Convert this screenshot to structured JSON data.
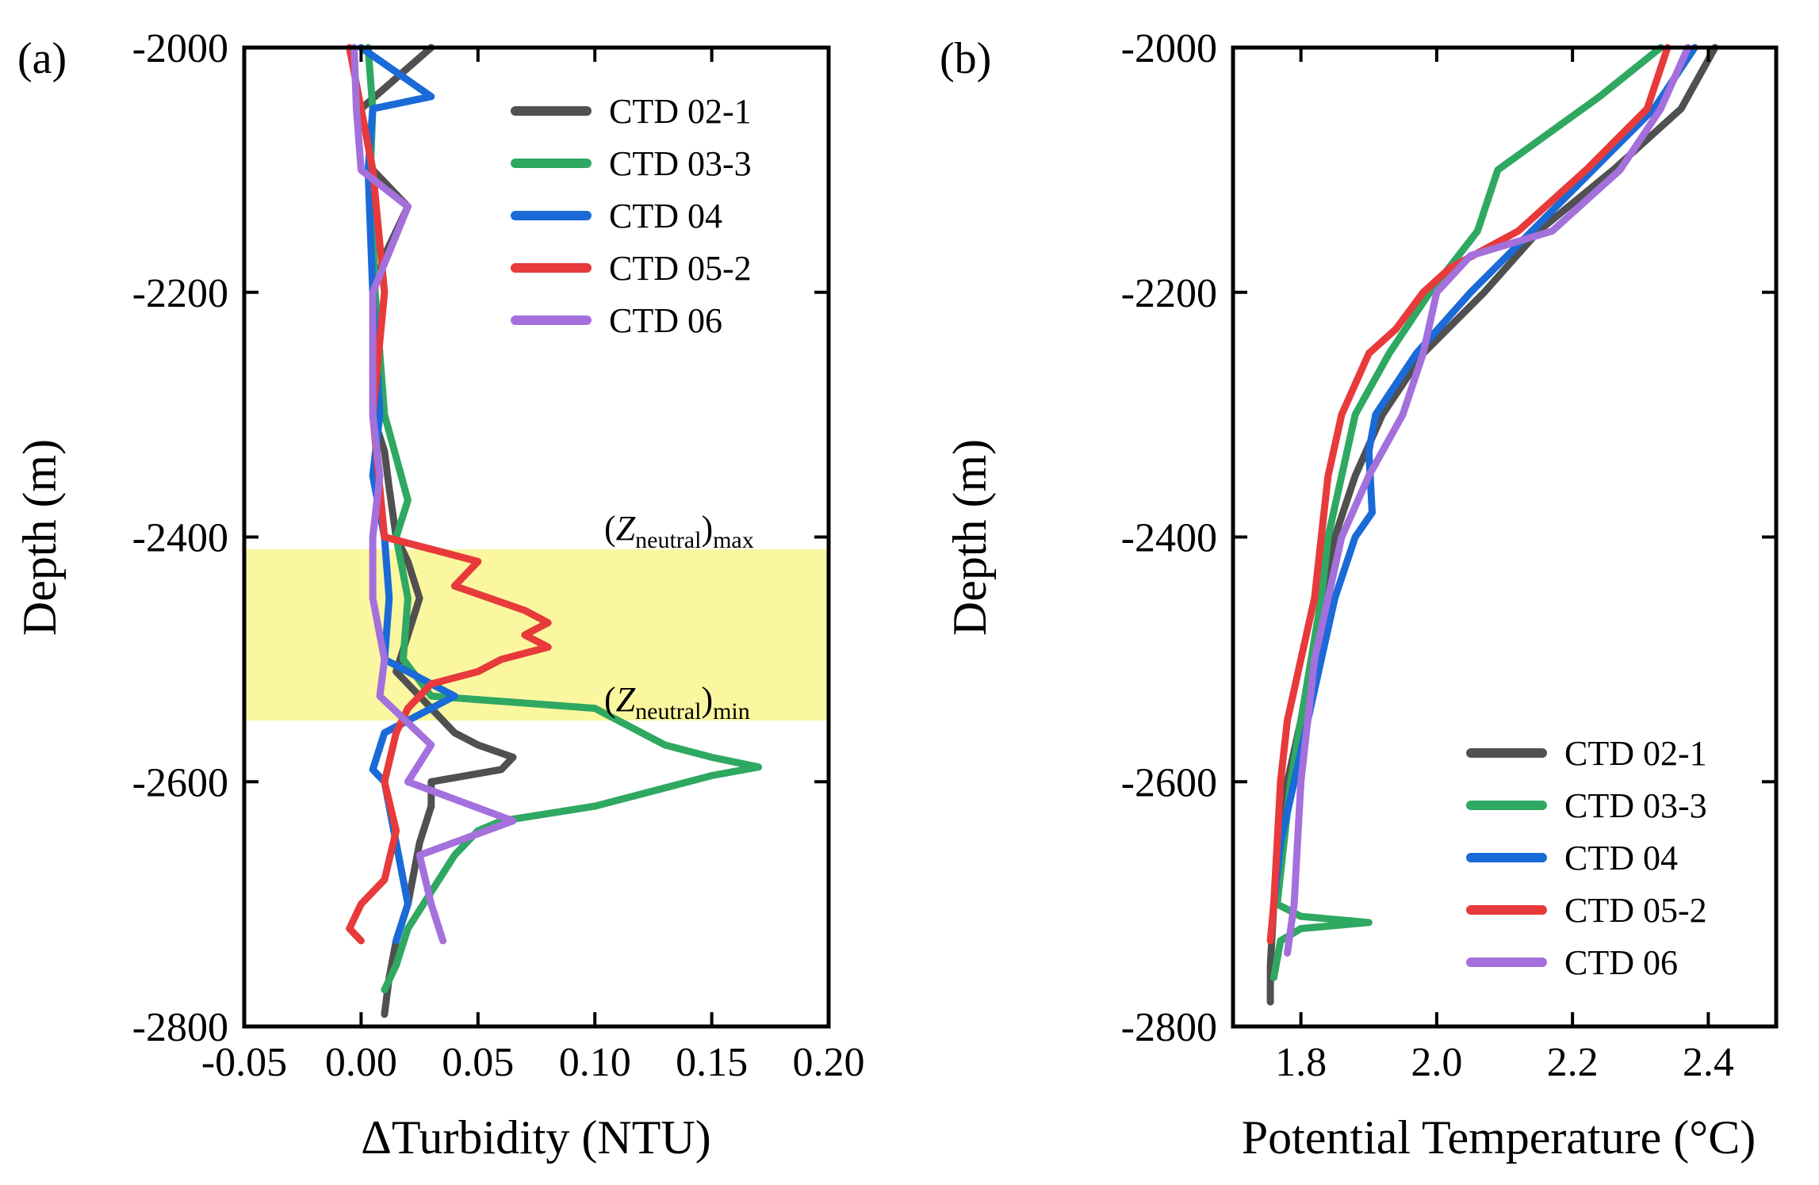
{
  "chart_data": [
    {
      "panel": "a",
      "panel_label": "(a)",
      "type": "line",
      "xlabel": "ΔTurbidity (NTU)",
      "ylabel": "Depth (m)",
      "xlim": [
        -0.05,
        0.2
      ],
      "ylim": [
        -2800,
        -2000
      ],
      "xticks": [
        -0.05,
        0.0,
        0.05,
        0.1,
        0.15,
        0.2
      ],
      "xtick_labels": [
        "-0.05",
        "0.00",
        "0.05",
        "0.10",
        "0.15",
        "0.20"
      ],
      "yticks": [
        -2000,
        -2200,
        -2400,
        -2600,
        -2800
      ],
      "ytick_labels": [
        "-2000",
        "-2200",
        "-2400",
        "-2600",
        "-2800"
      ],
      "legend_position": "top-right",
      "shaded_band": {
        "y_from": -2410,
        "y_to": -2550,
        "color": "#fbf7a0"
      },
      "annotations": [
        {
          "base": "(Z",
          "sub": "neutral",
          "close": ")",
          "sub2": "max",
          "y": -2410
        },
        {
          "base": "(Z",
          "sub": "neutral",
          "close": ")",
          "sub2": "min",
          "y": -2550
        }
      ],
      "series": [
        {
          "name": "CTD 02-1",
          "color": "#505050",
          "depth": [
            -2000,
            -2050,
            -2100,
            -2130,
            -2170,
            -2200,
            -2250,
            -2300,
            -2330,
            -2360,
            -2400,
            -2420,
            -2450,
            -2480,
            -2510,
            -2540,
            -2560,
            -2570,
            -2580,
            -2590,
            -2600,
            -2620,
            -2650,
            -2700,
            -2730,
            -2760,
            -2790
          ],
          "value": [
            0.03,
            0.0,
            0.005,
            0.02,
            0.01,
            0.005,
            0.008,
            0.005,
            0.01,
            0.012,
            0.015,
            0.02,
            0.025,
            0.02,
            0.015,
            0.03,
            0.04,
            0.05,
            0.065,
            0.06,
            0.03,
            0.03,
            0.025,
            0.02,
            0.015,
            0.012,
            0.01
          ]
        },
        {
          "name": "CTD 03-3",
          "color": "#2fa862",
          "depth": [
            -2000,
            -2050,
            -2100,
            -2200,
            -2300,
            -2370,
            -2400,
            -2450,
            -2500,
            -2530,
            -2540,
            -2560,
            -2570,
            -2580,
            -2588,
            -2595,
            -2605,
            -2620,
            -2632,
            -2640,
            -2660,
            -2690,
            -2720,
            -2750,
            -2770
          ],
          "value": [
            0.003,
            0.005,
            0.004,
            0.006,
            0.01,
            0.02,
            0.015,
            0.02,
            0.018,
            0.03,
            0.1,
            0.12,
            0.13,
            0.15,
            0.17,
            0.15,
            0.13,
            0.1,
            0.06,
            0.05,
            0.04,
            0.03,
            0.02,
            0.015,
            0.01
          ]
        },
        {
          "name": "CTD 04",
          "color": "#1a6ad8",
          "depth": [
            -2000,
            -2040,
            -2050,
            -2100,
            -2200,
            -2300,
            -2350,
            -2400,
            -2450,
            -2500,
            -2530,
            -2560,
            -2590,
            -2600,
            -2650,
            -2700,
            -2730
          ],
          "value": [
            0.0,
            0.03,
            0.005,
            0.003,
            0.005,
            0.008,
            0.005,
            0.01,
            0.012,
            0.01,
            0.04,
            0.01,
            0.005,
            0.01,
            0.015,
            0.02,
            0.015
          ]
        },
        {
          "name": "CTD 05-2",
          "color": "#e83a3a",
          "depth": [
            -2000,
            -2100,
            -2200,
            -2300,
            -2400,
            -2410,
            -2420,
            -2440,
            -2460,
            -2470,
            -2480,
            -2490,
            -2500,
            -2510,
            -2520,
            -2540,
            -2560,
            -2600,
            -2640,
            -2680,
            -2700,
            -2720,
            -2730
          ],
          "value": [
            -0.005,
            0.005,
            0.01,
            0.005,
            0.01,
            0.03,
            0.05,
            0.04,
            0.07,
            0.08,
            0.07,
            0.08,
            0.06,
            0.05,
            0.03,
            0.02,
            0.015,
            0.01,
            0.015,
            0.01,
            0.0,
            -0.005,
            0.0
          ]
        },
        {
          "name": "CTD 06",
          "color": "#a470dc",
          "depth": [
            -2000,
            -2050,
            -2100,
            -2130,
            -2200,
            -2300,
            -2350,
            -2400,
            -2450,
            -2500,
            -2530,
            -2570,
            -2600,
            -2632,
            -2660,
            -2700,
            -2730
          ],
          "value": [
            -0.003,
            -0.002,
            0.0,
            0.02,
            0.005,
            0.005,
            0.008,
            0.005,
            0.005,
            0.01,
            0.008,
            0.03,
            0.02,
            0.065,
            0.025,
            0.03,
            0.035
          ]
        }
      ]
    },
    {
      "panel": "b",
      "panel_label": "(b)",
      "type": "line",
      "xlabel": "Potential Temperature (°C)",
      "ylabel": "Depth (m)",
      "xlim": [
        1.7,
        2.5
      ],
      "ylim": [
        -2800,
        -2000
      ],
      "xticks": [
        1.8,
        2.0,
        2.2,
        2.4
      ],
      "xtick_labels": [
        "1.8",
        "2.0",
        "2.2",
        "2.4"
      ],
      "yticks": [
        -2000,
        -2200,
        -2400,
        -2600,
        -2800
      ],
      "ytick_labels": [
        "-2000",
        "-2200",
        "-2400",
        "-2600",
        "-2800"
      ],
      "legend_position": "bottom-right",
      "series": [
        {
          "name": "CTD 02-1",
          "color": "#505050",
          "depth": [
            -2000,
            -2050,
            -2100,
            -2150,
            -2200,
            -2250,
            -2300,
            -2350,
            -2400,
            -2450,
            -2500,
            -2550,
            -2600,
            -2650,
            -2700,
            -2750,
            -2780
          ],
          "value": [
            2.41,
            2.36,
            2.26,
            2.15,
            2.07,
            1.98,
            1.92,
            1.88,
            1.85,
            1.83,
            1.82,
            1.8,
            1.78,
            1.77,
            1.76,
            1.755,
            1.755
          ]
        },
        {
          "name": "CTD 03-3",
          "color": "#2fa862",
          "depth": [
            -2000,
            -2040,
            -2080,
            -2100,
            -2150,
            -2200,
            -2250,
            -2300,
            -2400,
            -2450,
            -2500,
            -2550,
            -2600,
            -2650,
            -2700,
            -2710,
            -2715,
            -2720,
            -2730,
            -2760
          ],
          "value": [
            2.33,
            2.24,
            2.14,
            2.09,
            2.06,
            1.99,
            1.93,
            1.88,
            1.84,
            1.83,
            1.815,
            1.8,
            1.785,
            1.775,
            1.765,
            1.8,
            1.9,
            1.8,
            1.77,
            1.76
          ]
        },
        {
          "name": "CTD 04",
          "color": "#1a6ad8",
          "depth": [
            -2000,
            -2050,
            -2100,
            -2150,
            -2200,
            -2250,
            -2300,
            -2330,
            -2380,
            -2400,
            -2450,
            -2500,
            -2550,
            -2600,
            -2650,
            -2700
          ],
          "value": [
            2.38,
            2.32,
            2.23,
            2.14,
            2.05,
            1.97,
            1.91,
            1.9,
            1.905,
            1.88,
            1.85,
            1.83,
            1.81,
            1.79,
            1.77,
            1.76
          ]
        },
        {
          "name": "CTD 05-2",
          "color": "#e83a3a",
          "depth": [
            -2000,
            -2050,
            -2100,
            -2150,
            -2180,
            -2200,
            -2230,
            -2250,
            -2300,
            -2350,
            -2400,
            -2450,
            -2500,
            -2550,
            -2600,
            -2650,
            -2700,
            -2730
          ],
          "value": [
            2.34,
            2.31,
            2.22,
            2.12,
            2.02,
            1.98,
            1.94,
            1.9,
            1.86,
            1.84,
            1.83,
            1.82,
            1.8,
            1.78,
            1.77,
            1.765,
            1.76,
            1.755
          ]
        },
        {
          "name": "CTD 06",
          "color": "#a470dc",
          "depth": [
            -2000,
            -2050,
            -2100,
            -2150,
            -2170,
            -2200,
            -2250,
            -2300,
            -2350,
            -2400,
            -2450,
            -2500,
            -2550,
            -2600,
            -2650,
            -2700,
            -2740
          ],
          "value": [
            2.37,
            2.33,
            2.27,
            2.17,
            2.05,
            2.0,
            1.98,
            1.95,
            1.9,
            1.86,
            1.84,
            1.82,
            1.81,
            1.8,
            1.795,
            1.79,
            1.78
          ]
        }
      ]
    }
  ]
}
